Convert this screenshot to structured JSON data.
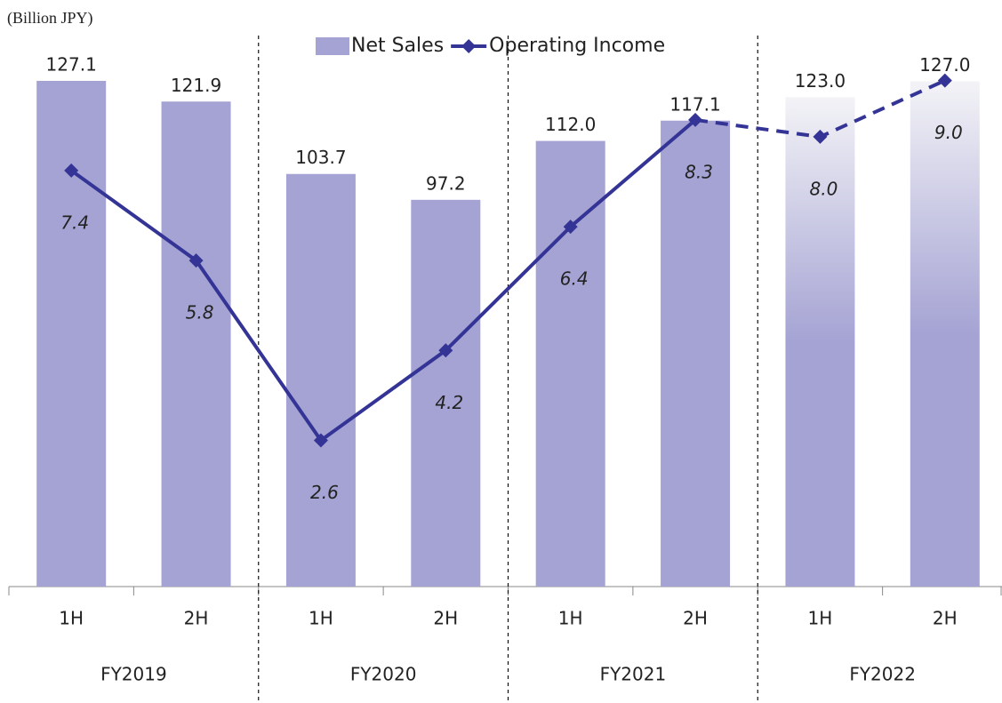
{
  "chart_data": {
    "type": "bar",
    "unit_label": "(Billion JPY)",
    "categories": [
      "1H",
      "2H",
      "1H",
      "2H",
      "1H",
      "2H",
      "1H",
      "2H"
    ],
    "groups": [
      "FY2019",
      "FY2020",
      "FY2021",
      "FY2022"
    ],
    "forecast": [
      false,
      false,
      false,
      false,
      false,
      false,
      true,
      true
    ],
    "series": [
      {
        "name": "Net Sales",
        "type": "bar",
        "color": "#a5a3d3",
        "values": [
          127.1,
          121.9,
          103.7,
          97.2,
          112.0,
          117.1,
          123.0,
          127.0
        ],
        "value_labels": [
          "127.1",
          "121.9",
          "103.7",
          "97.2",
          "112.0",
          "117.1",
          "123.0",
          "127.0"
        ]
      },
      {
        "name": "Operating Income",
        "type": "line",
        "axis": "y2",
        "color": "#343496",
        "values": [
          7.4,
          5.8,
          2.6,
          4.2,
          6.4,
          8.3,
          8.0,
          9.0
        ],
        "value_labels": [
          "7.4",
          "5.8",
          "2.6",
          "4.2",
          "6.4",
          "8.3",
          "8.0",
          "9.0"
        ]
      }
    ],
    "ylim": [
      0,
      130
    ],
    "y2lim": [
      0,
      9.2
    ],
    "legend": "top"
  }
}
